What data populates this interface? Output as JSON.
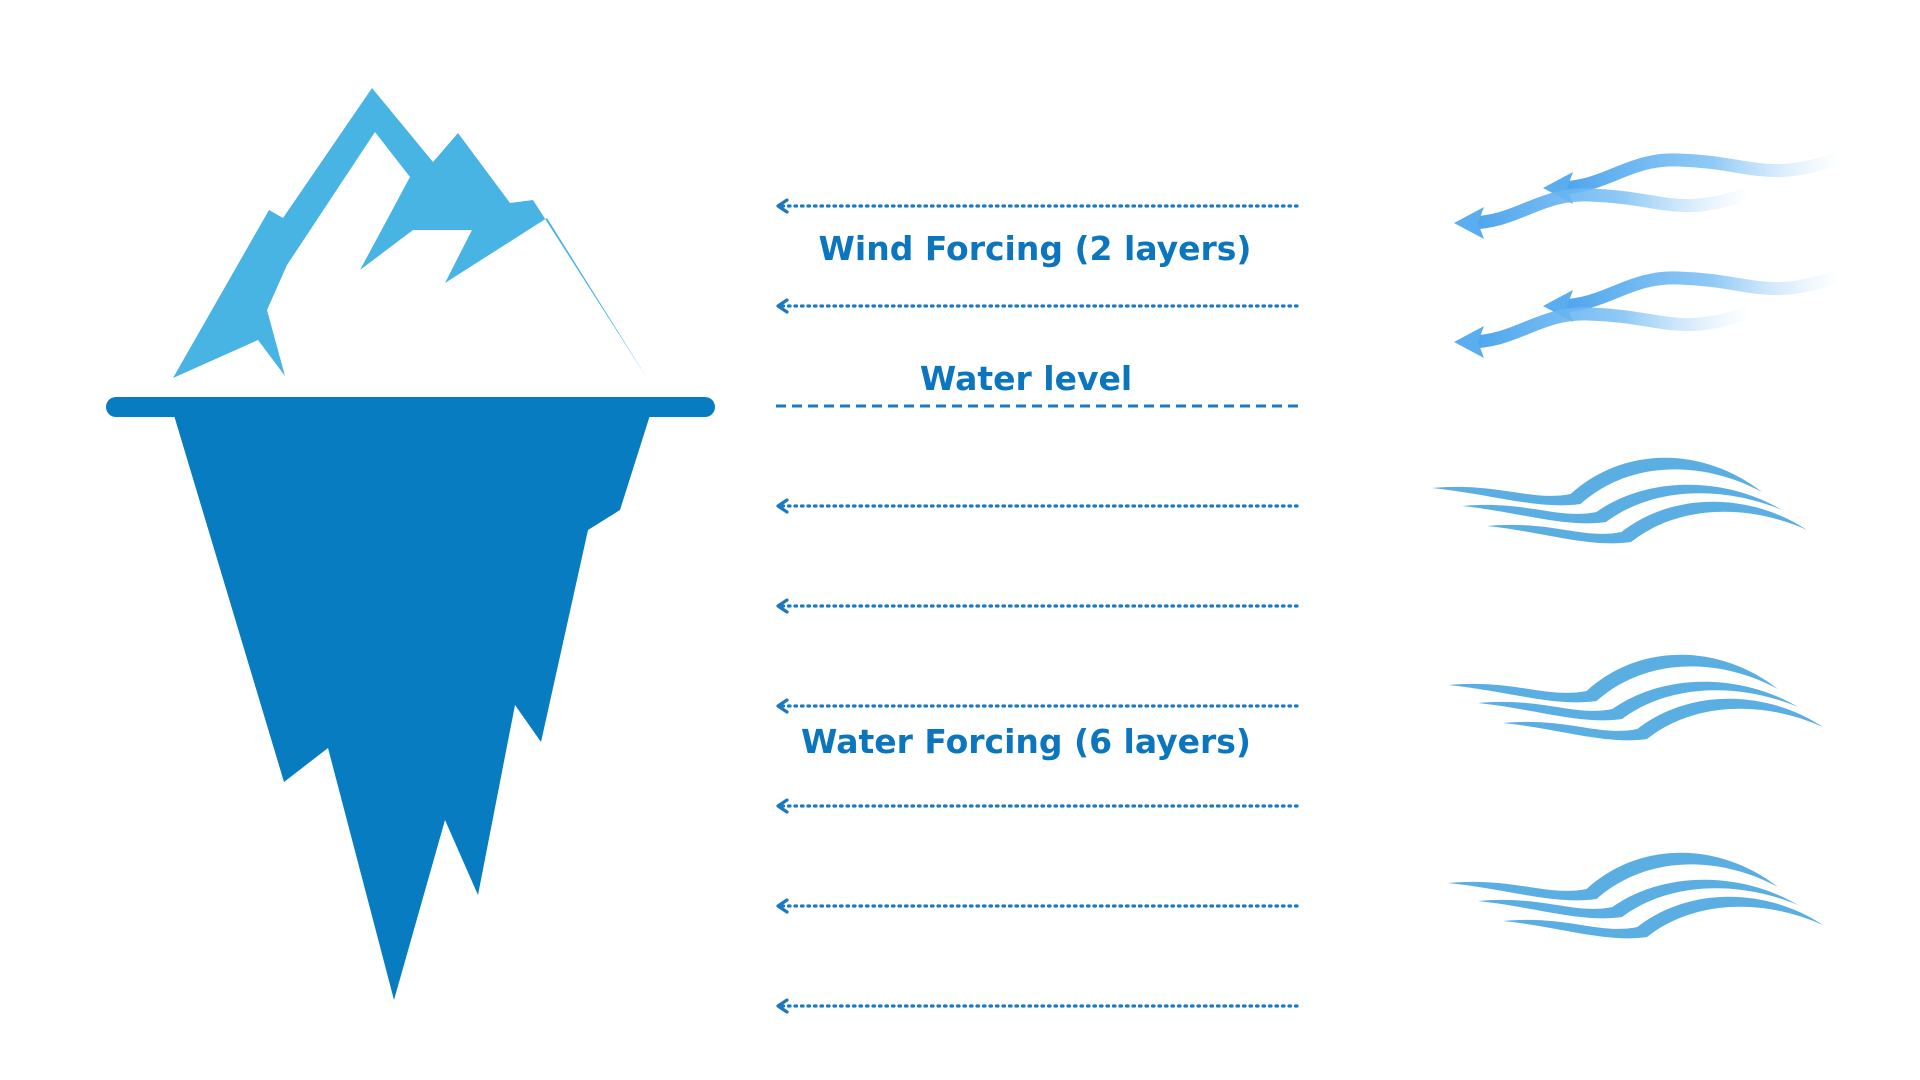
{
  "labels": {
    "wind_forcing": "Wind Forcing (2 layers)",
    "water_level": "Water level",
    "water_forcing": "Water Forcing (6 layers)"
  },
  "layers": {
    "wind": 2,
    "water": 6
  },
  "colors": {
    "text": "#0b76bd",
    "iceberg_top": "#48b4e4",
    "iceberg_bottom": "#087cc1",
    "waterline_bar": "#087cc1",
    "arrow": "#1a79c2",
    "wind": "#5aaef0",
    "waves": "#5aaee2"
  }
}
